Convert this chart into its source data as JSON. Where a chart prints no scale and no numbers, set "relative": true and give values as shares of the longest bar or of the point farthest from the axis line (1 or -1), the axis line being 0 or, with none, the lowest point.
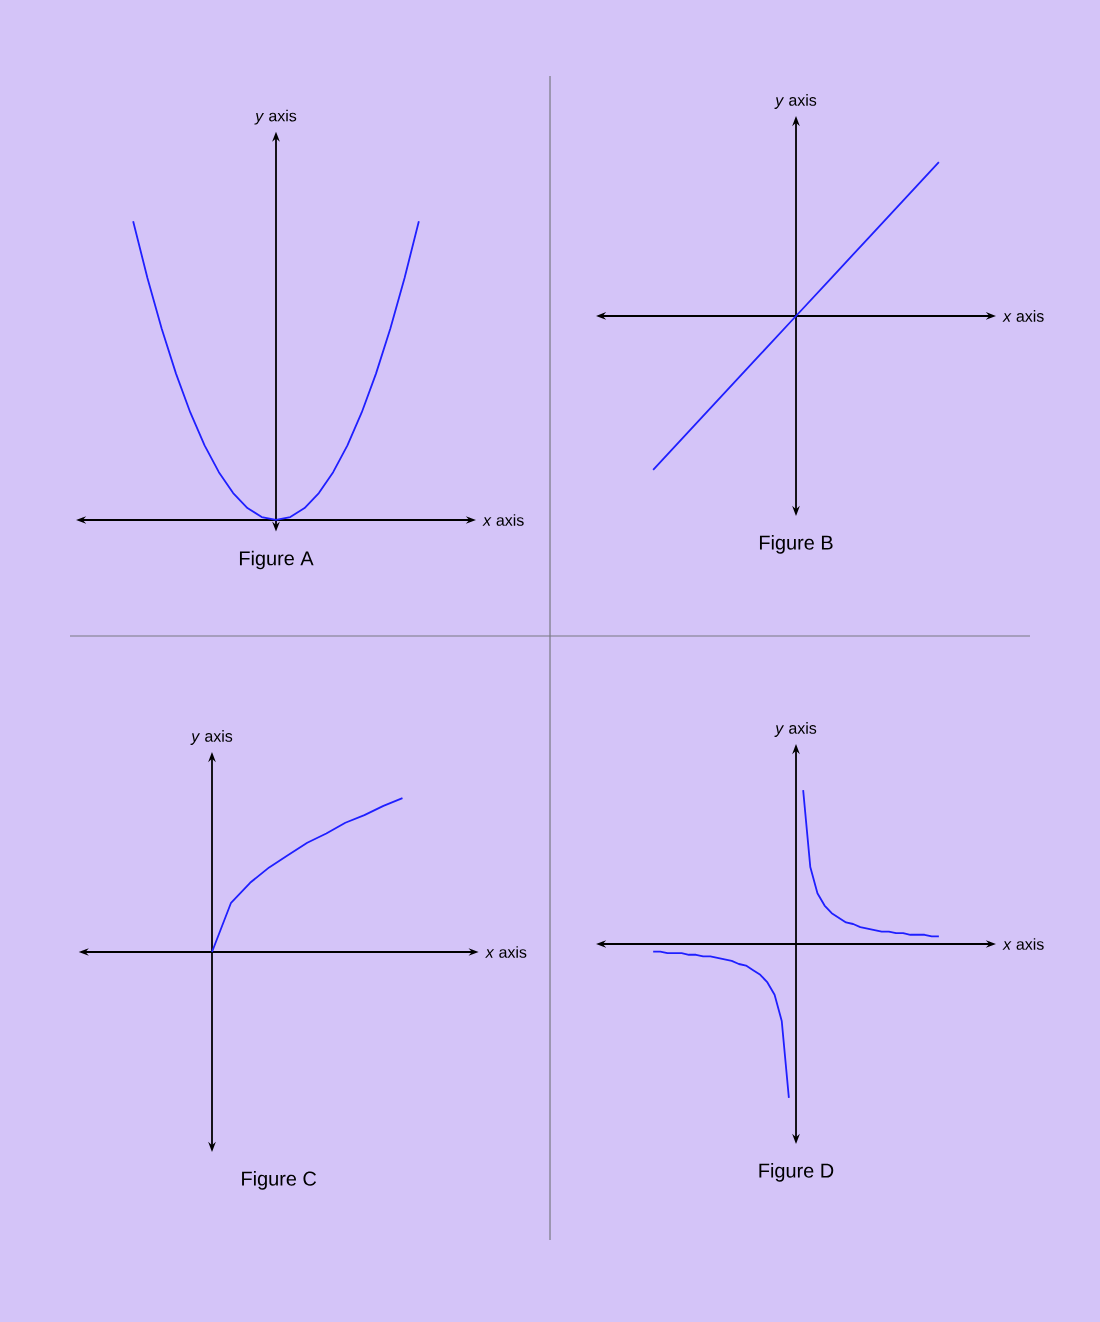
{
  "chart_data": [
    {
      "type": "line",
      "relative": true,
      "title": "Figure A",
      "xlabel": "*x* axis",
      "ylabel": "*y* axis",
      "color": "#1f1fff",
      "categories": [
        null,
        null,
        null,
        null,
        null,
        null,
        null,
        null,
        null,
        null,
        null,
        null,
        null,
        null,
        null,
        null,
        null,
        null,
        null,
        null,
        null
      ],
      "values": [
        1,
        0.81,
        0.64,
        0.49,
        0.36,
        0.25,
        0.16,
        0.09,
        0.04,
        0.01,
        0,
        0.01,
        0.04,
        0.09,
        0.16,
        0.25,
        0.36,
        0.49,
        0.64,
        0.81,
        1
      ]
    },
    {
      "type": "line",
      "relative": true,
      "title": "Figure B",
      "xlabel": "*x* axis",
      "ylabel": "*y* axis",
      "color": "#1f1fff",
      "categories": [
        null,
        null,
        null,
        null,
        null,
        null,
        null,
        null,
        null
      ],
      "values": [
        -1,
        -0.75,
        -0.5,
        -0.25,
        0,
        0.25,
        0.5,
        0.75,
        1
      ]
    },
    {
      "type": "line",
      "relative": true,
      "title": "Figure C",
      "xlabel": "*x* axis",
      "ylabel": "*y* axis",
      "color": "#1f1fff",
      "categories": [
        null,
        null,
        null,
        null,
        null,
        null,
        null,
        null,
        null,
        null,
        null
      ],
      "values": [
        0,
        0.32,
        0.45,
        0.55,
        0.63,
        0.71,
        0.77,
        0.84,
        0.89,
        0.95,
        1
      ]
    },
    {
      "type": "line",
      "relative": true,
      "title": "Figure D",
      "xlabel": "*x* axis",
      "ylabel": "*y* axis",
      "categories": [
        null,
        null,
        null,
        null,
        null,
        null,
        null,
        null,
        null,
        null,
        null,
        null,
        null,
        null,
        null,
        null,
        null,
        null,
        null,
        null,
        null,
        null,
        null,
        null,
        null,
        null,
        null,
        null,
        null,
        null,
        null,
        null,
        null,
        null,
        null,
        null,
        null,
        null,
        null,
        null,
        null
      ],
      "series": [
        {
          "color": "#1f1fff",
          "values": [
            -0.05,
            -0.05,
            -0.06,
            -0.06,
            -0.06,
            -0.07,
            -0.07,
            -0.08,
            -0.08,
            -0.09,
            -0.1,
            -0.11,
            -0.13,
            -0.14,
            -0.17,
            -0.2,
            -0.25,
            -0.33,
            -0.5,
            -1,
            null,
            null,
            null,
            null,
            null,
            null,
            null,
            null,
            null,
            null,
            null,
            null,
            null,
            null,
            null,
            null,
            null,
            null,
            null,
            null,
            null
          ]
        },
        {
          "color": "#1f1fff",
          "values": [
            null,
            null,
            null,
            null,
            null,
            null,
            null,
            null,
            null,
            null,
            null,
            null,
            null,
            null,
            null,
            null,
            null,
            null,
            null,
            null,
            null,
            1,
            0.5,
            0.33,
            0.25,
            0.2,
            0.17,
            0.14,
            0.13,
            0.11,
            0.1,
            0.09,
            0.08,
            0.08,
            0.07,
            0.07,
            0.06,
            0.06,
            0.06,
            0.05,
            0.05
          ]
        }
      ]
    }
  ]
}
